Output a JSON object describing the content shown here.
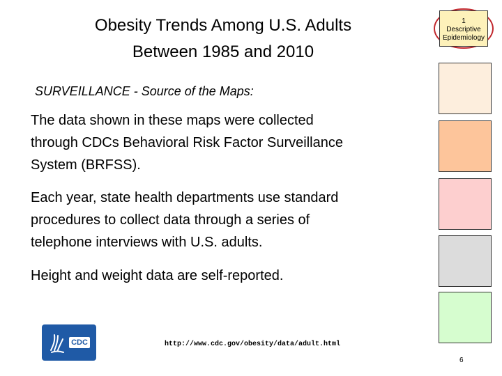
{
  "title": {
    "line1": "Obesity Trends Among U.S. Adults",
    "line2": "Between 1985 and 2010"
  },
  "badge": {
    "number": "1",
    "line1": "Descriptive",
    "line2": "Epidemiology"
  },
  "subheading": "SURVEILLANCE - Source of the Maps:",
  "paragraphs": [
    {
      "lines": [
        "The data shown in these maps were collected",
        "through CDCs Behavioral Risk Factor Surveillance",
        "System (BRFSS)."
      ]
    },
    {
      "lines": [
        "Each year, state health departments use standard",
        "procedures to collect data through a series of",
        "telephone interviews with U.S. adults."
      ]
    },
    {
      "lines": [
        "Height and weight data are self-reported."
      ]
    }
  ],
  "swatches": [
    "#fdeedd",
    "#fdc59b",
    "#fdcfcf",
    "#dcdcdc",
    "#d6fdcf"
  ],
  "logo": {
    "text": "CDC"
  },
  "url": "http://www.cdc.gov/obesity/data/adult.html",
  "page_number": "6"
}
